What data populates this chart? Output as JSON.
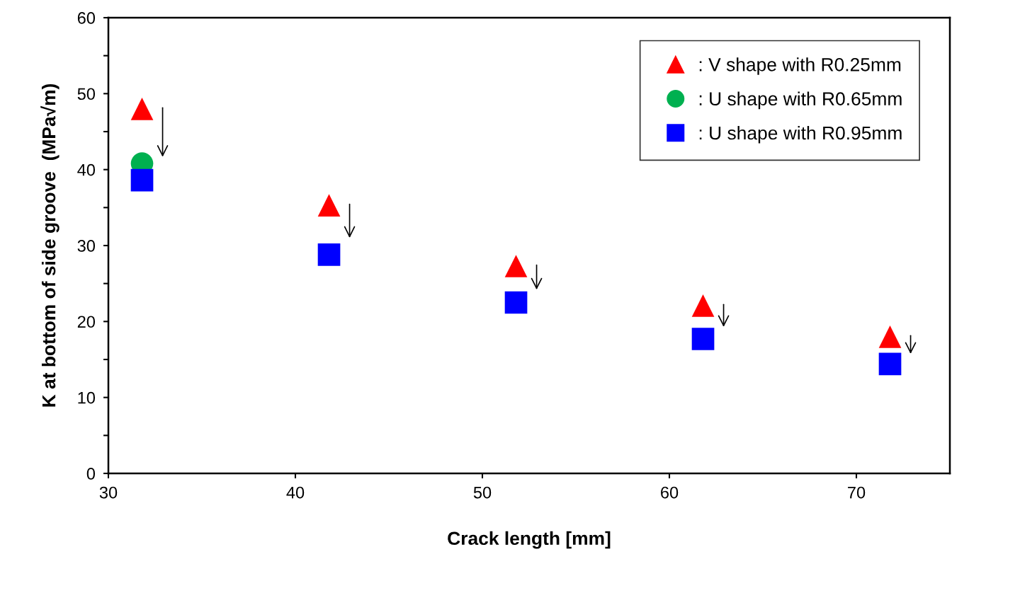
{
  "chart_data": {
    "type": "scatter",
    "xlabel": "Crack length [mm]",
    "ylabel": "K at bottom of side groove  (MPa√m)",
    "x": [
      31.8,
      41.8,
      51.8,
      61.8,
      71.8
    ],
    "series": [
      {
        "name": ": V shape with R0.25mm",
        "color": "#ff0000",
        "marker": "triangle",
        "values": [
          48.0,
          35.3,
          27.3,
          22.1,
          18.0
        ]
      },
      {
        "name": ": U shape with R0.65mm",
        "color": "#00b050",
        "marker": "circle",
        "values": [
          40.8,
          null,
          null,
          null,
          null
        ]
      },
      {
        "name": ": U shape with R0.95mm",
        "color": "#0000ff",
        "marker": "square",
        "values": [
          38.6,
          28.8,
          22.5,
          17.7,
          14.4
        ]
      }
    ],
    "xlim": [
      30,
      75
    ],
    "xticks": [
      30,
      40,
      50,
      60,
      70
    ],
    "ylim": [
      0,
      60
    ],
    "yticks": [
      0,
      {
        "value": 5,
        "label": null
      },
      10,
      {
        "value": 15,
        "label": null
      },
      20,
      {
        "value": 25,
        "label": null
      },
      30,
      {
        "value": 35,
        "label": null
      },
      40,
      {
        "value": 45,
        "label": null
      },
      50,
      {
        "value": 55,
        "label": null
      },
      60
    ],
    "grid": false,
    "legend": "top right"
  }
}
